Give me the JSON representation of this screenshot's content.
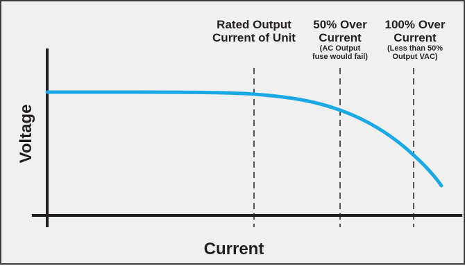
{
  "axes": {
    "xlabel": "Current",
    "ylabel": "Voltage"
  },
  "markers": [
    {
      "title_line1": "Rated Output",
      "title_line2": "Current of Unit",
      "note_line1": "",
      "note_line2": ""
    },
    {
      "title_line1": "50% Over",
      "title_line2": "Current",
      "note_line1": "(AC Output",
      "note_line2": "fuse would fail)"
    },
    {
      "title_line1": "100% Over",
      "title_line2": "Current",
      "note_line1": "(Less than 50%",
      "note_line2": "Output VAC)"
    }
  ],
  "colors": {
    "curve": "#1ba9e6",
    "axis": "#231f20",
    "background": "#f0f0f0",
    "dashed": "#231f20"
  },
  "chart_data": {
    "type": "line",
    "title": "",
    "xlabel": "Current",
    "ylabel": "Voltage",
    "x_marker_levels": [
      "Rated Output Current of Unit",
      "50% Over Current",
      "100% Over Current"
    ],
    "series": [
      {
        "description_points_relative": [
          [
            0.0,
            1.0
          ],
          [
            0.55,
            0.99
          ],
          [
            0.75,
            0.85
          ],
          [
            0.92,
            0.56
          ],
          [
            1.0,
            0.22
          ]
        ]
      }
    ]
  }
}
